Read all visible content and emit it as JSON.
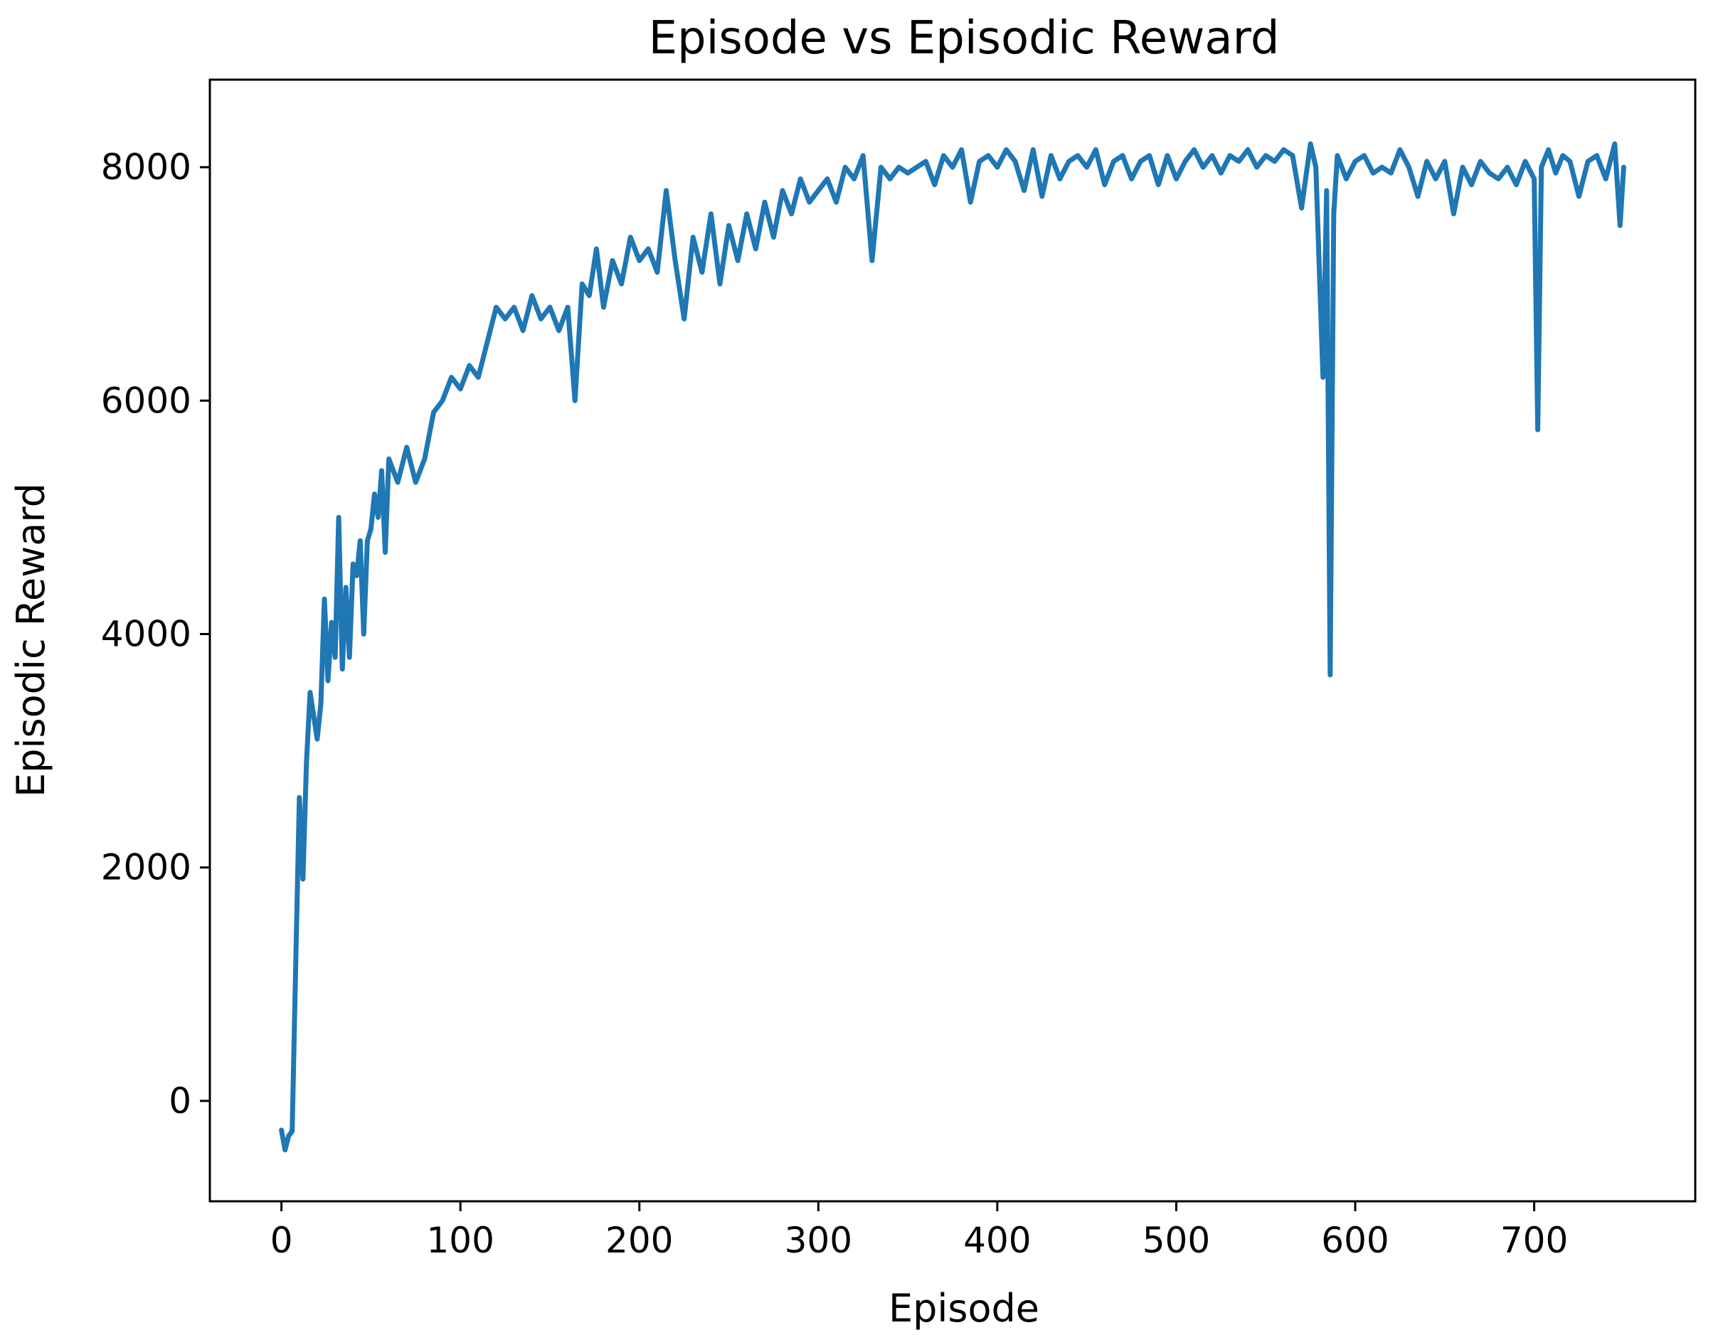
{
  "chart_data": {
    "type": "line",
    "title": "Episode vs Episodic Reward",
    "xlabel": "Episode",
    "ylabel": "Episodic Reward",
    "xlim": [
      -40,
      790
    ],
    "ylim": [
      -860,
      8750
    ],
    "xticks": [
      0,
      100,
      200,
      300,
      400,
      500,
      600,
      700
    ],
    "xtick_labels": [
      "0",
      "100",
      "200",
      "300",
      "400",
      "500",
      "600",
      "700"
    ],
    "yticks": [
      0,
      2000,
      4000,
      6000,
      8000
    ],
    "ytick_labels": [
      "0",
      "2000",
      "4000",
      "6000",
      "8000"
    ],
    "grid": false,
    "legend": "none",
    "series": [
      {
        "color": "#1f77b4",
        "points": [
          [
            0,
            -250
          ],
          [
            2,
            -420
          ],
          [
            4,
            -300
          ],
          [
            6,
            -260
          ],
          [
            8,
            1200
          ],
          [
            10,
            2600
          ],
          [
            12,
            1900
          ],
          [
            14,
            2900
          ],
          [
            16,
            3500
          ],
          [
            18,
            3300
          ],
          [
            20,
            3100
          ],
          [
            22,
            3400
          ],
          [
            24,
            4300
          ],
          [
            26,
            3600
          ],
          [
            28,
            4100
          ],
          [
            30,
            3800
          ],
          [
            32,
            5000
          ],
          [
            34,
            3700
          ],
          [
            36,
            4400
          ],
          [
            38,
            3800
          ],
          [
            40,
            4600
          ],
          [
            42,
            4500
          ],
          [
            44,
            4800
          ],
          [
            46,
            4000
          ],
          [
            48,
            4800
          ],
          [
            50,
            4900
          ],
          [
            52,
            5200
          ],
          [
            54,
            5000
          ],
          [
            56,
            5400
          ],
          [
            58,
            4700
          ],
          [
            60,
            5500
          ],
          [
            65,
            5300
          ],
          [
            70,
            5600
          ],
          [
            75,
            5300
          ],
          [
            80,
            5500
          ],
          [
            85,
            5900
          ],
          [
            90,
            6000
          ],
          [
            95,
            6200
          ],
          [
            100,
            6100
          ],
          [
            105,
            6300
          ],
          [
            110,
            6200
          ],
          [
            115,
            6500
          ],
          [
            120,
            6800
          ],
          [
            125,
            6700
          ],
          [
            130,
            6800
          ],
          [
            135,
            6600
          ],
          [
            140,
            6900
          ],
          [
            145,
            6700
          ],
          [
            150,
            6800
          ],
          [
            155,
            6600
          ],
          [
            160,
            6800
          ],
          [
            164,
            6000
          ],
          [
            168,
            7000
          ],
          [
            172,
            6900
          ],
          [
            176,
            7300
          ],
          [
            180,
            6800
          ],
          [
            185,
            7200
          ],
          [
            190,
            7000
          ],
          [
            195,
            7400
          ],
          [
            200,
            7200
          ],
          [
            205,
            7300
          ],
          [
            210,
            7100
          ],
          [
            215,
            7800
          ],
          [
            220,
            7200
          ],
          [
            225,
            6700
          ],
          [
            230,
            7400
          ],
          [
            235,
            7100
          ],
          [
            240,
            7600
          ],
          [
            245,
            7000
          ],
          [
            250,
            7500
          ],
          [
            255,
            7200
          ],
          [
            260,
            7600
          ],
          [
            265,
            7300
          ],
          [
            270,
            7700
          ],
          [
            275,
            7400
          ],
          [
            280,
            7800
          ],
          [
            285,
            7600
          ],
          [
            290,
            7900
          ],
          [
            295,
            7700
          ],
          [
            300,
            7800
          ],
          [
            305,
            7900
          ],
          [
            310,
            7700
          ],
          [
            315,
            8000
          ],
          [
            320,
            7900
          ],
          [
            325,
            8100
          ],
          [
            330,
            7200
          ],
          [
            335,
            8000
          ],
          [
            340,
            7900
          ],
          [
            345,
            8000
          ],
          [
            350,
            7950
          ],
          [
            355,
            8000
          ],
          [
            360,
            8050
          ],
          [
            365,
            7850
          ],
          [
            370,
            8100
          ],
          [
            375,
            8000
          ],
          [
            380,
            8150
          ],
          [
            385,
            7700
          ],
          [
            390,
            8050
          ],
          [
            395,
            8100
          ],
          [
            400,
            8000
          ],
          [
            405,
            8150
          ],
          [
            410,
            8050
          ],
          [
            415,
            7800
          ],
          [
            420,
            8150
          ],
          [
            425,
            7750
          ],
          [
            430,
            8100
          ],
          [
            435,
            7900
          ],
          [
            440,
            8050
          ],
          [
            445,
            8100
          ],
          [
            450,
            8000
          ],
          [
            455,
            8150
          ],
          [
            460,
            7850
          ],
          [
            465,
            8050
          ],
          [
            470,
            8100
          ],
          [
            475,
            7900
          ],
          [
            480,
            8050
          ],
          [
            485,
            8100
          ],
          [
            490,
            7850
          ],
          [
            495,
            8100
          ],
          [
            500,
            7900
          ],
          [
            505,
            8050
          ],
          [
            510,
            8150
          ],
          [
            515,
            8000
          ],
          [
            520,
            8100
          ],
          [
            525,
            7950
          ],
          [
            530,
            8100
          ],
          [
            535,
            8050
          ],
          [
            540,
            8150
          ],
          [
            545,
            8000
          ],
          [
            550,
            8100
          ],
          [
            555,
            8050
          ],
          [
            560,
            8150
          ],
          [
            565,
            8100
          ],
          [
            570,
            7650
          ],
          [
            575,
            8200
          ],
          [
            578,
            8000
          ],
          [
            582,
            6200
          ],
          [
            584,
            7800
          ],
          [
            586,
            3650
          ],
          [
            588,
            7600
          ],
          [
            590,
            8100
          ],
          [
            595,
            7900
          ],
          [
            600,
            8050
          ],
          [
            605,
            8100
          ],
          [
            610,
            7950
          ],
          [
            615,
            8000
          ],
          [
            620,
            7950
          ],
          [
            625,
            8150
          ],
          [
            630,
            8000
          ],
          [
            635,
            7750
          ],
          [
            640,
            8050
          ],
          [
            645,
            7900
          ],
          [
            650,
            8050
          ],
          [
            655,
            7600
          ],
          [
            660,
            8000
          ],
          [
            665,
            7850
          ],
          [
            670,
            8050
          ],
          [
            675,
            7950
          ],
          [
            680,
            7900
          ],
          [
            685,
            8000
          ],
          [
            690,
            7850
          ],
          [
            695,
            8050
          ],
          [
            700,
            7900
          ],
          [
            702,
            5750
          ],
          [
            704,
            8000
          ],
          [
            708,
            8150
          ],
          [
            712,
            7950
          ],
          [
            716,
            8100
          ],
          [
            720,
            8050
          ],
          [
            725,
            7750
          ],
          [
            730,
            8050
          ],
          [
            735,
            8100
          ],
          [
            740,
            7900
          ],
          [
            745,
            8200
          ],
          [
            748,
            7500
          ],
          [
            750,
            8000
          ]
        ]
      }
    ]
  }
}
